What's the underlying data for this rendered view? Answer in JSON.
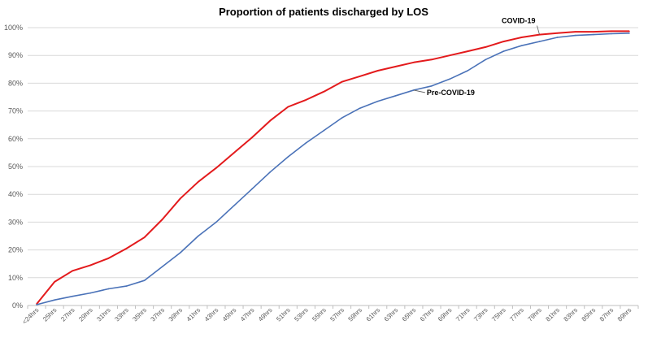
{
  "chart_data": {
    "type": "line",
    "title": "Proportion of patients discharged by LOS",
    "xlabel": "",
    "ylabel": "",
    "ylim": [
      0,
      100
    ],
    "grid": true,
    "legend": "none",
    "y_tick_labels": [
      "0%",
      "10%",
      "20%",
      "30%",
      "40%",
      "50%",
      "60%",
      "70%",
      "80%",
      "90%",
      "100%"
    ],
    "x_tick_labels": [
      "<24hrs",
      "25hrs",
      "27hrs",
      "29hrs",
      "31hrs",
      "33hrs",
      "35hrs",
      "37hrs",
      "39hrs",
      "41hrs",
      "43hrs",
      "45hrs",
      "47hrs",
      "49hrs",
      "51hrs",
      "53hrs",
      "55hrs",
      "57hrs",
      "59hrs",
      "61hrs",
      "63hrs",
      "65hrs",
      "67hrs",
      "69hrs",
      "71hrs",
      "73hrs",
      "75hrs",
      "77hrs",
      "79hrs",
      "81hrs",
      "83hrs",
      "85hrs",
      "87hrs",
      "89hrs"
    ],
    "x": [
      "<24hrs",
      "25hrs",
      "27hrs",
      "29hrs",
      "31hrs",
      "33hrs",
      "35hrs",
      "37hrs",
      "39hrs",
      "41hrs",
      "43hrs",
      "45hrs",
      "47hrs",
      "49hrs",
      "51hrs",
      "53hrs",
      "55hrs",
      "57hrs",
      "59hrs",
      "61hrs",
      "63hrs",
      "65hrs",
      "67hrs",
      "69hrs",
      "71hrs",
      "73hrs",
      "75hrs",
      "77hrs",
      "79hrs",
      "81hrs",
      "83hrs",
      "85hrs",
      "87hrs",
      "89hrs"
    ],
    "series": [
      {
        "name": "COVID-19",
        "color": "#e31a1c",
        "values": [
          0.5,
          8.5,
          12.5,
          14.5,
          17.0,
          20.5,
          24.5,
          31.0,
          38.5,
          44.5,
          49.5,
          55.0,
          60.5,
          66.5,
          71.5,
          74.0,
          77.0,
          80.5,
          82.5,
          84.5,
          86.0,
          87.5,
          88.5,
          90.0,
          91.5,
          93.0,
          95.0,
          96.5,
          97.5,
          98.0,
          98.5,
          98.5,
          98.7,
          98.7
        ]
      },
      {
        "name": "Pre-COVID-19",
        "color": "#4a72b8",
        "values": [
          0.3,
          2.0,
          3.3,
          4.5,
          6.0,
          7.0,
          9.0,
          14.0,
          19.0,
          25.0,
          30.0,
          36.0,
          42.0,
          48.0,
          53.5,
          58.5,
          63.0,
          67.5,
          71.0,
          73.5,
          75.5,
          77.5,
          79.0,
          81.5,
          84.5,
          88.5,
          91.5,
          93.5,
          95.0,
          96.5,
          97.2,
          97.5,
          97.8,
          98.0
        ]
      }
    ],
    "annotations": [
      {
        "text": "COVID-19",
        "series": "COVID-19"
      },
      {
        "text": "Pre-COVID-19",
        "series": "Pre-COVID-19"
      }
    ]
  }
}
